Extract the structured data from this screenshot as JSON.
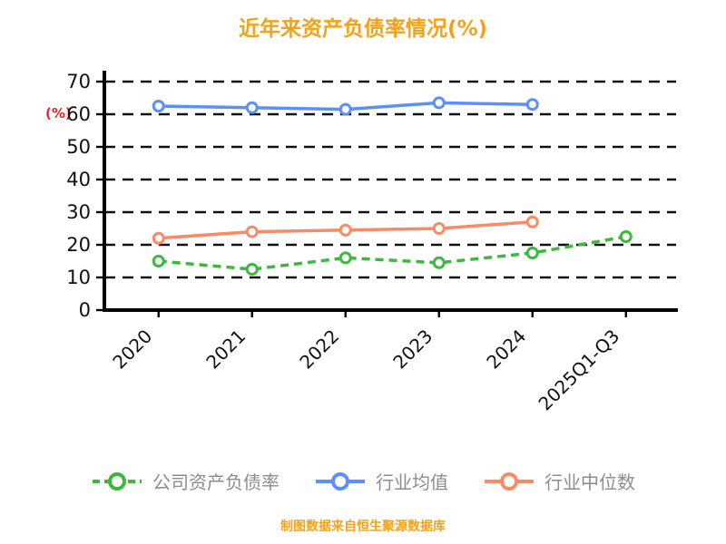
{
  "chart_data": {
    "type": "line",
    "title": "近年来资产负债率情况(%)",
    "ylabel": "(%)",
    "categories": [
      "2020",
      "2021",
      "2022",
      "2023",
      "2024",
      "2025Q1-Q3"
    ],
    "ylim": [
      0,
      70
    ],
    "ytick_step": 10,
    "yticks": [
      0,
      10,
      20,
      30,
      40,
      50,
      60,
      70
    ],
    "grid": "dashed-horizontal",
    "legend_position": "bottom",
    "series": [
      {
        "name": "公司资产负债率",
        "color": "#3cb83c",
        "dash": true,
        "values": [
          15,
          12.5,
          16,
          14.5,
          17.5,
          22.5
        ]
      },
      {
        "name": "行业均值",
        "color": "#5b8ff9",
        "dash": false,
        "values": [
          62.5,
          62,
          61.5,
          63.5,
          63,
          null
        ]
      },
      {
        "name": "行业中位数",
        "color": "#fa8a66",
        "dash": false,
        "values": [
          22,
          24,
          24.5,
          25,
          27,
          null
        ]
      }
    ]
  },
  "footer": {
    "note": "制图数据来自恒生聚源数据库"
  },
  "colors": {
    "title": "#f5a21b",
    "ylabel": "#ee2222",
    "footer": "#f5a21b",
    "legend_text": "#8c8c8c",
    "axis": "#000000",
    "background": "#ffffff"
  }
}
